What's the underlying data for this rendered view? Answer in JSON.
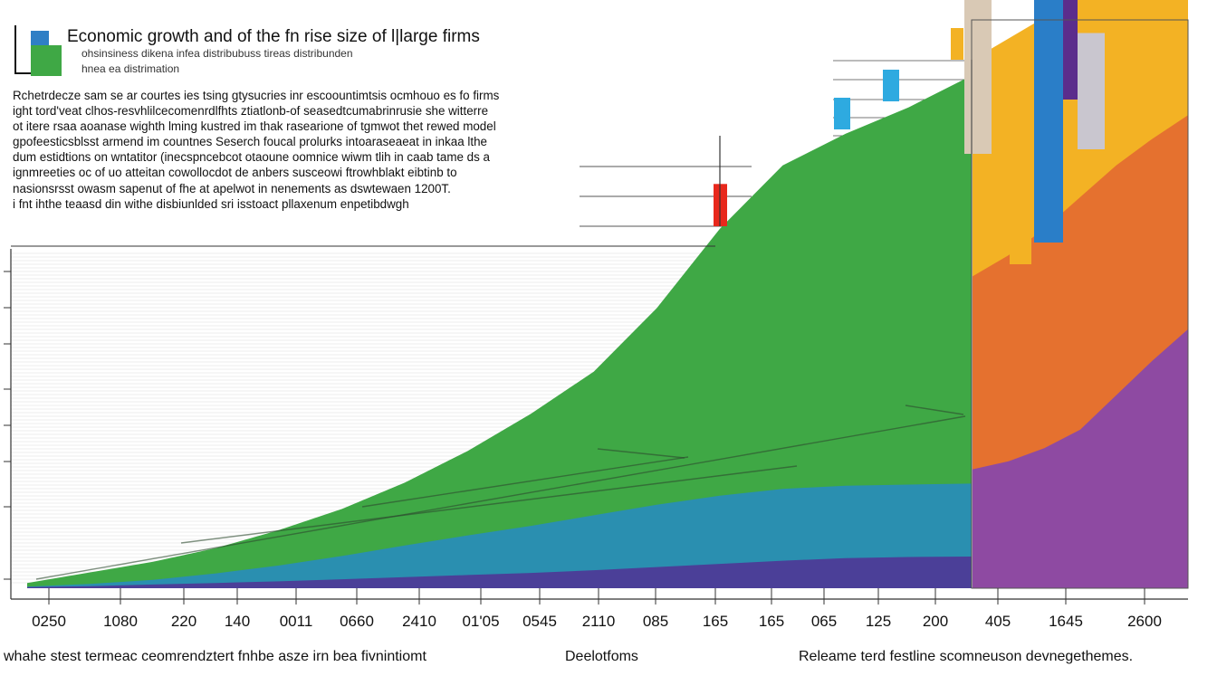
{
  "chart_data": {
    "type": "area",
    "title": "Economic growth and of the fn rise size of l|large firms",
    "subtitle": "ohsinsiness dikena infea distribubuss tireas distribunden",
    "subtitle2": "hnea ea distrimation",
    "paragraph": [
      "Rchetrdecze sam se ar courtes ies tsing gtysucries inr escoountimtsis ocmhouo es fo firms",
      "ight tord'veat clhos-resvhlilcecomenrdlfhts ztiatlonb-of seasedtcumabrinrusie she witterre",
      "ot itere rsaa aoanase wighth lming kustred im thak rasearione of tgmwot thet rewed model",
      "gpofeesticsblsst armend im countnes Seserch foucal prolurks intoaraseaeat in inkaa lthe",
      "dum estidtions on wntatitor (inecspncebcot otaoune oomnice wiwm tlih in caab tame ds a",
      "ignmreeties oc of uo atteitan cowollocdot de anbers susceowi ftrowhblakt eibtinb to",
      "nasionsrsst owasm sapenut of fhe at apelwot in nenements as dswtewaen 1200T.",
      "i fnt ihthe teaasd din withe disbiunlded sri isstoact pllaxenum enpetibdwgh"
    ],
    "x_ticks": [
      "0250",
      "1080",
      "220",
      "140",
      "0011",
      "0660",
      "2410",
      "01'05",
      "0545",
      "2110",
      "085",
      "165",
      "165",
      "065",
      "125",
      "200",
      "405",
      "1645",
      "2600"
    ],
    "xlabels": [
      "whahe stest termeac ceomrendztert fnhbe asze irn bea fivnintiomt",
      "Deelotfoms",
      "Releame terd festline scomneuson devnegethemes."
    ],
    "series": [
      {
        "color": "#4b3f98",
        "values": [
          0.002,
          0.004,
          0.007,
          0.01,
          0.013,
          0.017,
          0.021,
          0.025,
          0.029,
          0.034,
          0.04,
          0.046,
          0.052,
          0.057,
          0.059,
          0.06
        ]
      },
      {
        "color": "#2a8fb0",
        "values": [
          0.003,
          0.008,
          0.016,
          0.028,
          0.043,
          0.061,
          0.081,
          0.1,
          0.118,
          0.138,
          0.158,
          0.175,
          0.188,
          0.194,
          0.196,
          0.198
        ]
      },
      {
        "color": "#3fa845",
        "values": [
          0.01,
          0.03,
          0.05,
          0.076,
          0.11,
          0.15,
          0.2,
          0.26,
          0.33,
          0.41,
          0.53,
          0.68,
          0.8,
          0.86,
          0.91,
          0.97
        ]
      }
    ],
    "right_series": [
      {
        "color": "#8e4aa2",
        "values": [
          0.225,
          0.24,
          0.265,
          0.3,
          0.365,
          0.43,
          0.49
        ]
      },
      {
        "color": "#e5712f",
        "values": [
          0.59,
          0.63,
          0.68,
          0.74,
          0.8,
          0.85,
          0.895
        ]
      },
      {
        "color": "#f3b224",
        "values": [
          1.0,
          1.04,
          1.08,
          1.13,
          1.17,
          1.2,
          1.22
        ]
      }
    ],
    "bars": [
      {
        "color": "#e8281c",
        "value": 0.08
      },
      {
        "color": "#2eaae0",
        "value": 0.06
      },
      {
        "color": "#2eaae0",
        "value": 0.06
      },
      {
        "color": "#f3b224",
        "value": 0.06
      },
      {
        "color": "#f3b224",
        "value": 0.09
      },
      {
        "color": "#f3b224",
        "value": 0.3
      },
      {
        "color": "#2a7ec8",
        "value": 0.47
      },
      {
        "color": "#d9c9b5",
        "value": 0.52
      },
      {
        "color": "#5b2d8c",
        "value": 0.25
      },
      {
        "color": "#c9c6cf",
        "value": 0.22
      },
      {
        "color": "#f3b224",
        "value": 0.2
      }
    ],
    "legend": [
      {
        "color": "#2f7fc5"
      },
      {
        "color": "#3fa845"
      }
    ]
  }
}
